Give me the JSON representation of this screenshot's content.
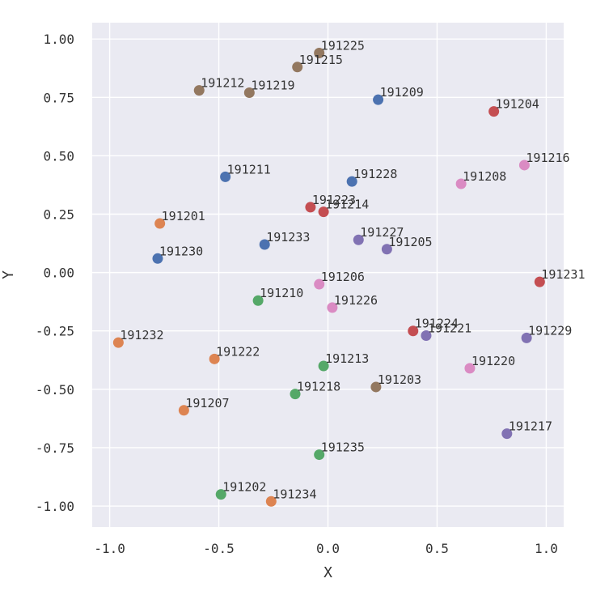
{
  "chart_data": {
    "type": "scatter",
    "xlabel": "X",
    "ylabel": "Y",
    "xlim": [
      -1.08,
      1.08
    ],
    "ylim": [
      -1.09,
      1.07
    ],
    "xticks": [
      -1.0,
      -0.5,
      0.0,
      0.5,
      1.0
    ],
    "yticks": [
      -1.0,
      -0.75,
      -0.5,
      -0.25,
      0.0,
      0.25,
      0.5,
      0.75,
      1.0
    ],
    "xtick_labels": [
      "-1.0",
      "-0.5",
      "0.0",
      "0.5",
      "1.0"
    ],
    "ytick_labels": [
      "-1.00",
      "-0.75",
      "-0.50",
      "-0.25",
      "0.00",
      "0.25",
      "0.50",
      "0.75",
      "1.00"
    ],
    "grid": true,
    "background": "#eaeaf2",
    "colors": {
      "blue": "#4c72b0",
      "orange": "#dd8452",
      "green": "#55a868",
      "red": "#c44e52",
      "purple": "#8172b3",
      "brown": "#937860",
      "pink": "#da8bc3"
    },
    "points": [
      {
        "label": "191201",
        "x": -0.77,
        "y": 0.21,
        "color": "orange"
      },
      {
        "label": "191202",
        "x": -0.49,
        "y": -0.95,
        "color": "green"
      },
      {
        "label": "191203",
        "x": 0.22,
        "y": -0.49,
        "color": "brown"
      },
      {
        "label": "191204",
        "x": 0.76,
        "y": 0.69,
        "color": "red"
      },
      {
        "label": "191205",
        "x": 0.27,
        "y": 0.1,
        "color": "purple"
      },
      {
        "label": "191206",
        "x": -0.04,
        "y": -0.05,
        "color": "pink"
      },
      {
        "label": "191207",
        "x": -0.66,
        "y": -0.59,
        "color": "orange"
      },
      {
        "label": "191208",
        "x": 0.61,
        "y": 0.38,
        "color": "pink"
      },
      {
        "label": "191209",
        "x": 0.23,
        "y": 0.74,
        "color": "blue"
      },
      {
        "label": "191210",
        "x": -0.32,
        "y": -0.12,
        "color": "green"
      },
      {
        "label": "191211",
        "x": -0.47,
        "y": 0.41,
        "color": "blue"
      },
      {
        "label": "191212",
        "x": -0.59,
        "y": 0.78,
        "color": "brown"
      },
      {
        "label": "191213",
        "x": -0.02,
        "y": -0.4,
        "color": "green"
      },
      {
        "label": "191214",
        "x": -0.02,
        "y": 0.26,
        "color": "red"
      },
      {
        "label": "191215",
        "x": -0.14,
        "y": 0.88,
        "color": "brown"
      },
      {
        "label": "191216",
        "x": 0.9,
        "y": 0.46,
        "color": "pink"
      },
      {
        "label": "191217",
        "x": 0.82,
        "y": -0.69,
        "color": "purple"
      },
      {
        "label": "191218",
        "x": -0.15,
        "y": -0.52,
        "color": "green"
      },
      {
        "label": "191219",
        "x": -0.36,
        "y": 0.77,
        "color": "brown"
      },
      {
        "label": "191220",
        "x": 0.65,
        "y": -0.41,
        "color": "pink"
      },
      {
        "label": "191221",
        "x": 0.45,
        "y": -0.27,
        "color": "purple"
      },
      {
        "label": "191222",
        "x": -0.52,
        "y": -0.37,
        "color": "orange"
      },
      {
        "label": "191223",
        "x": -0.08,
        "y": 0.28,
        "color": "red"
      },
      {
        "label": "191224",
        "x": 0.39,
        "y": -0.25,
        "color": "red"
      },
      {
        "label": "191225",
        "x": -0.04,
        "y": 0.94,
        "color": "brown"
      },
      {
        "label": "191226",
        "x": 0.02,
        "y": -0.15,
        "color": "pink"
      },
      {
        "label": "191227",
        "x": 0.14,
        "y": 0.14,
        "color": "purple"
      },
      {
        "label": "191228",
        "x": 0.11,
        "y": 0.39,
        "color": "blue"
      },
      {
        "label": "191229",
        "x": 0.91,
        "y": -0.28,
        "color": "purple"
      },
      {
        "label": "191230",
        "x": -0.78,
        "y": 0.06,
        "color": "blue"
      },
      {
        "label": "191231",
        "x": 0.97,
        "y": -0.04,
        "color": "red"
      },
      {
        "label": "191232",
        "x": -0.96,
        "y": -0.3,
        "color": "orange"
      },
      {
        "label": "191233",
        "x": -0.29,
        "y": 0.12,
        "color": "blue"
      },
      {
        "label": "191234",
        "x": -0.26,
        "y": -0.98,
        "color": "orange"
      },
      {
        "label": "191235",
        "x": -0.04,
        "y": -0.78,
        "color": "green"
      }
    ]
  }
}
